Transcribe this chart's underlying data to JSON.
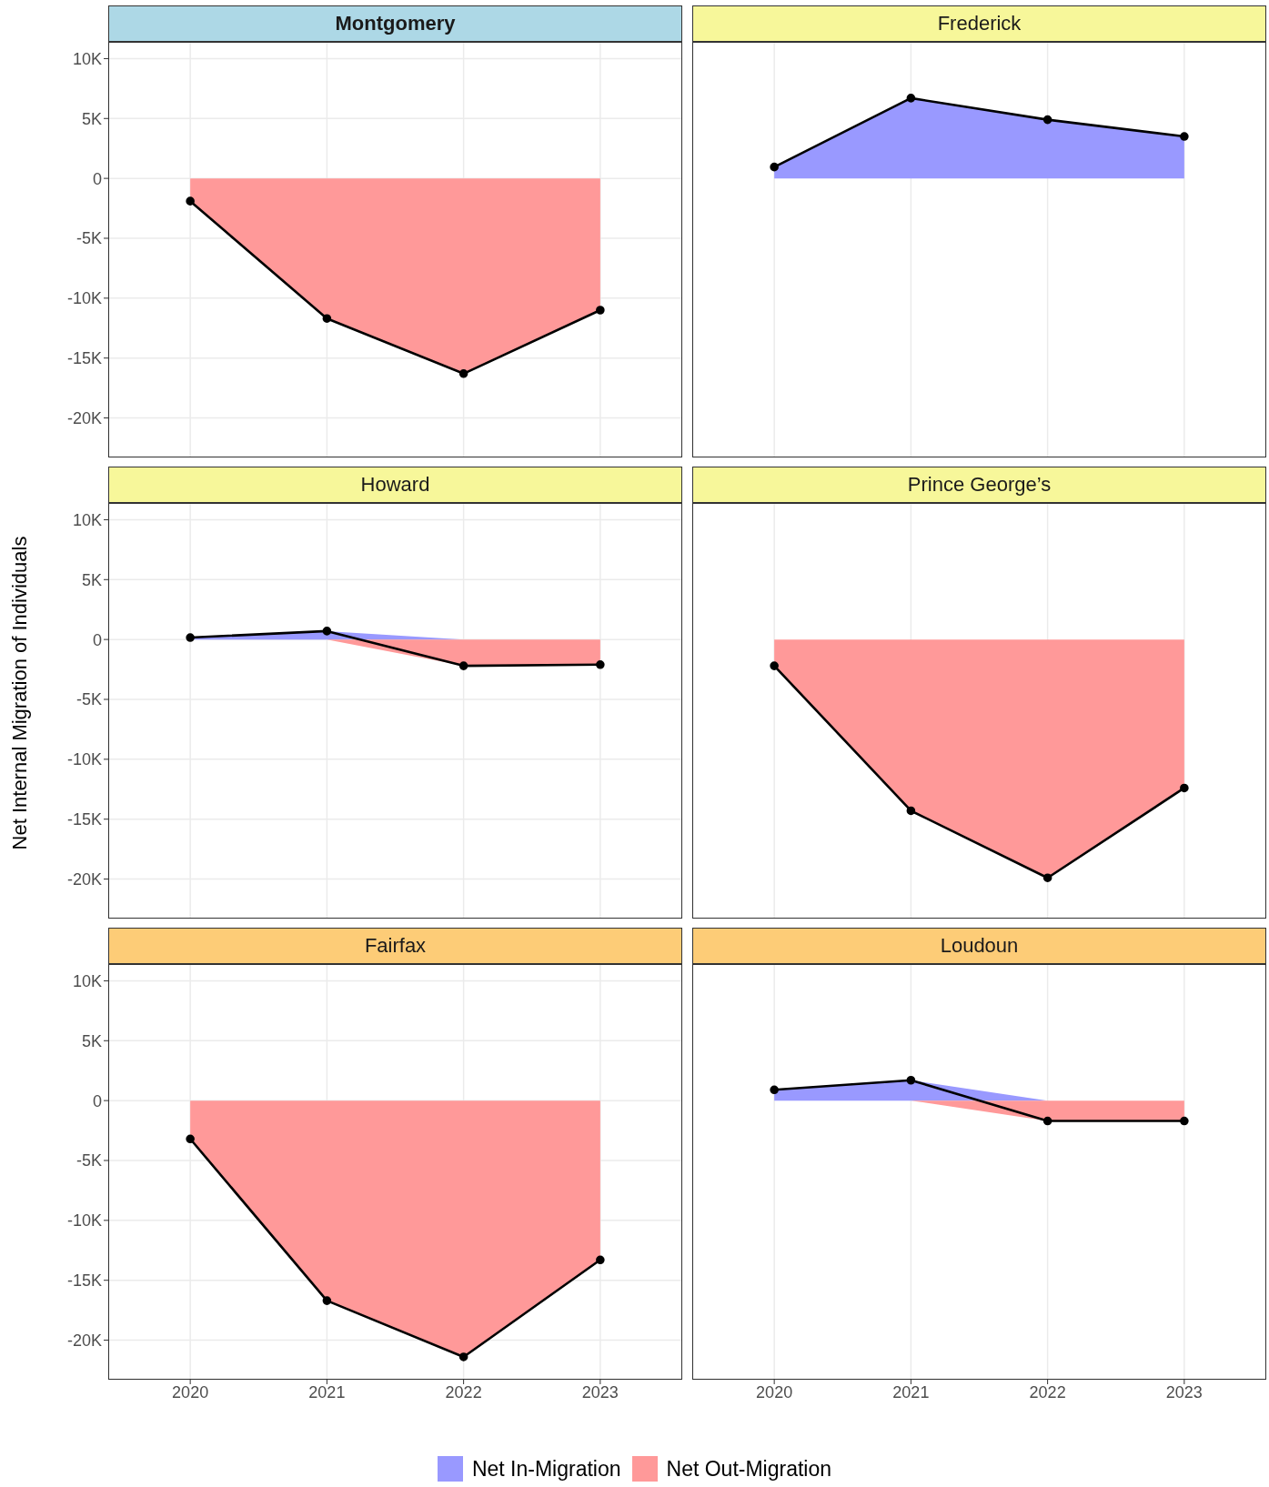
{
  "chart_data": [
    {
      "type": "area",
      "title": "Montgomery",
      "categories": [
        "2020",
        "2021",
        "2022",
        "2023"
      ],
      "ylabel": "Net Internal Migration of Individuals",
      "ylim": [
        -23300,
        11400
      ],
      "yticks": [
        {
          "value": -20000,
          "label": "-20K"
        },
        {
          "value": -15000,
          "label": "-15K"
        },
        {
          "value": -10000,
          "label": "-10K"
        },
        {
          "value": -5000,
          "label": "-5K"
        },
        {
          "value": 0,
          "label": "0"
        },
        {
          "value": 5000,
          "label": "5K"
        },
        {
          "value": 10000,
          "label": "10K"
        }
      ],
      "grid": true,
      "legend": "bottom",
      "tick_labels": "y",
      "series": [
        {
          "name": "Net Out-Migration",
          "color": "#ff9999",
          "marker": "circle",
          "values": [
            -1900,
            -11700,
            -16300,
            -11000
          ]
        }
      ]
    },
    {
      "type": "area",
      "title": "Frederick",
      "categories": [
        "2020",
        "2021",
        "2022",
        "2023"
      ],
      "ylim": [
        -23300,
        11400
      ],
      "yticks": [
        {
          "value": -20000,
          "label": null
        },
        {
          "value": -15000,
          "label": null
        },
        {
          "value": -10000,
          "label": null
        },
        {
          "value": -5000,
          "label": null
        },
        {
          "value": 0,
          "label": null
        },
        {
          "value": 5000,
          "label": null
        },
        {
          "value": 10000,
          "label": null
        }
      ],
      "grid": true,
      "legend": "bottom",
      "tick_labels": false,
      "series": [
        {
          "name": "Net In-Migration",
          "color": "#9999ff",
          "marker": "circle",
          "values": [
            950,
            6700,
            4900,
            3500
          ]
        }
      ]
    },
    {
      "type": "area",
      "title": "Howard",
      "categories": [
        "2020",
        "2021",
        "2022",
        "2023"
      ],
      "ylim": [
        -23300,
        11400
      ],
      "yticks": [
        {
          "value": -20000,
          "label": "-20K"
        },
        {
          "value": -15000,
          "label": "-15K"
        },
        {
          "value": -10000,
          "label": "-10K"
        },
        {
          "value": -5000,
          "label": "-5K"
        },
        {
          "value": 0,
          "label": "0"
        },
        {
          "value": 5000,
          "label": "5K"
        },
        {
          "value": 10000,
          "label": "10K"
        }
      ],
      "grid": true,
      "legend": "bottom",
      "tick_labels": "y",
      "series": [
        {
          "type": "line",
          "color": "#000000",
          "marker": "circle",
          "values": [
            160,
            700,
            -2200,
            -2100
          ]
        },
        {
          "name": "Net In-Migration",
          "color": "#9999ff",
          "values": [
            160,
            700,
            0,
            0
          ]
        },
        {
          "name": "Net Out-Migration",
          "color": "#ff9999",
          "values": [
            0,
            0,
            -2200,
            -2100
          ]
        }
      ]
    },
    {
      "type": "area",
      "title": "Prince George’s",
      "categories": [
        "2020",
        "2021",
        "2022",
        "2023"
      ],
      "ylim": [
        -23300,
        11400
      ],
      "yticks": [
        {
          "value": -20000,
          "label": null
        },
        {
          "value": -15000,
          "label": null
        },
        {
          "value": -10000,
          "label": null
        },
        {
          "value": -5000,
          "label": null
        },
        {
          "value": 0,
          "label": null
        },
        {
          "value": 5000,
          "label": null
        },
        {
          "value": 10000,
          "label": null
        }
      ],
      "grid": true,
      "legend": "bottom",
      "tick_labels": false,
      "series": [
        {
          "name": "Net Out-Migration",
          "color": "#ff9999",
          "marker": "circle",
          "values": [
            -2200,
            -14300,
            -19900,
            -12400
          ]
        }
      ]
    },
    {
      "type": "area",
      "title": "Fairfax",
      "categories": [
        "2020",
        "2021",
        "2022",
        "2023"
      ],
      "ylim": [
        -23300,
        11400
      ],
      "yticks": [
        {
          "value": -20000,
          "label": "-20K"
        },
        {
          "value": -15000,
          "label": "-15K"
        },
        {
          "value": -10000,
          "label": "-10K"
        },
        {
          "value": -5000,
          "label": "-5K"
        },
        {
          "value": 0,
          "label": "0"
        },
        {
          "value": 5000,
          "label": "5K"
        },
        {
          "value": 10000,
          "label": "10K"
        }
      ],
      "grid": true,
      "legend": "bottom",
      "series": [
        {
          "name": "Net Out-Migration",
          "color": "#ff9999",
          "marker": "circle",
          "values": [
            -3200,
            -16700,
            -21400,
            -13300
          ]
        }
      ]
    },
    {
      "type": "area",
      "title": "Loudoun",
      "categories": [
        "2020",
        "2021",
        "2022",
        "2023"
      ],
      "ylim": [
        -23300,
        11400
      ],
      "yticks": [
        {
          "value": -20000,
          "label": null
        },
        {
          "value": -15000,
          "label": null
        },
        {
          "value": -10000,
          "label": null
        },
        {
          "value": -5000,
          "label": null
        },
        {
          "value": 0,
          "label": null
        },
        {
          "value": 5000,
          "label": null
        },
        {
          "value": 10000,
          "label": null
        }
      ],
      "grid": true,
      "legend": "bottom",
      "tick_labels": "x",
      "series": [
        {
          "type": "line",
          "color": "#000000",
          "marker": "circle",
          "values": [
            900,
            1700,
            -1700,
            -1700
          ]
        },
        {
          "name": "Net In-Migration",
          "color": "#9999ff",
          "values": [
            900,
            1700,
            0,
            0
          ]
        },
        {
          "name": "Net Out-Migration",
          "color": "#ff9999",
          "values": [
            0,
            0,
            -1700,
            -1700
          ]
        }
      ]
    }
  ]
}
